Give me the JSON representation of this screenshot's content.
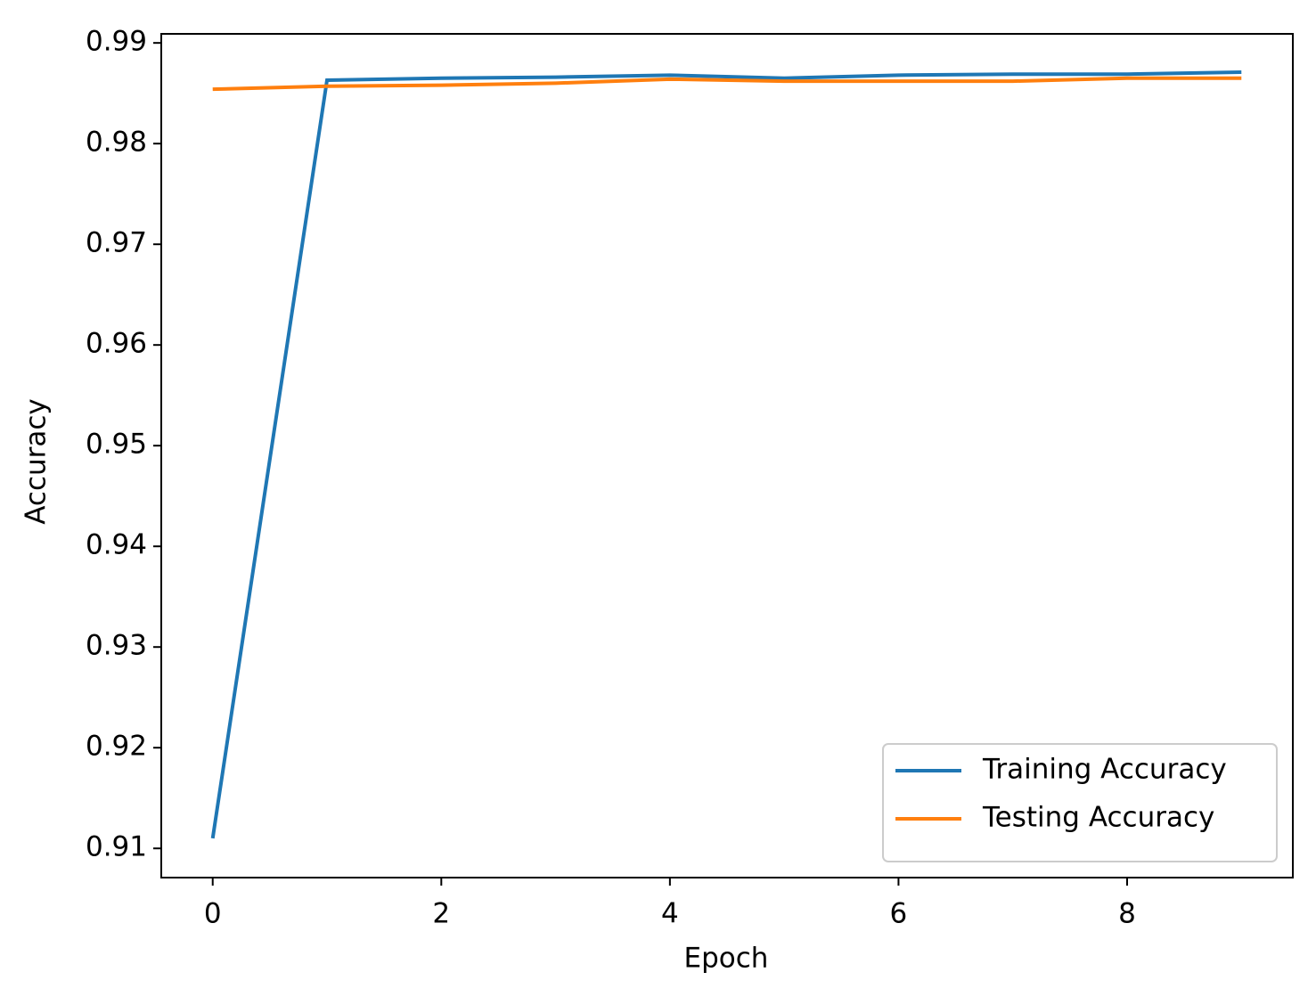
{
  "chart_data": {
    "type": "line",
    "x_label": "Epoch",
    "y_label": "Accuracy",
    "x": [
      0,
      1,
      2,
      3,
      4,
      5,
      6,
      7,
      8,
      9
    ],
    "series": [
      {
        "name": "Training Accuracy",
        "color": "#1f77b4",
        "values": [
          0.911,
          0.9863,
          0.9865,
          0.9866,
          0.9868,
          0.9865,
          0.9868,
          0.9869,
          0.9869,
          0.9871
        ]
      },
      {
        "name": "Testing Accuracy",
        "color": "#ff7f0e",
        "values": [
          0.9854,
          0.9857,
          0.9858,
          0.986,
          0.9864,
          0.9862,
          0.9862,
          0.9862,
          0.9865,
          0.9865
        ]
      }
    ],
    "xlim": [
      -0.45,
      9.45
    ],
    "ylim": [
      0.9071,
      0.9909
    ],
    "xticks": [
      0,
      2,
      4,
      6,
      8
    ],
    "yticks": [
      0.91,
      0.92,
      0.93,
      0.94,
      0.95,
      0.96,
      0.97,
      0.98,
      0.99
    ],
    "grid": false,
    "legend": "lower right"
  }
}
